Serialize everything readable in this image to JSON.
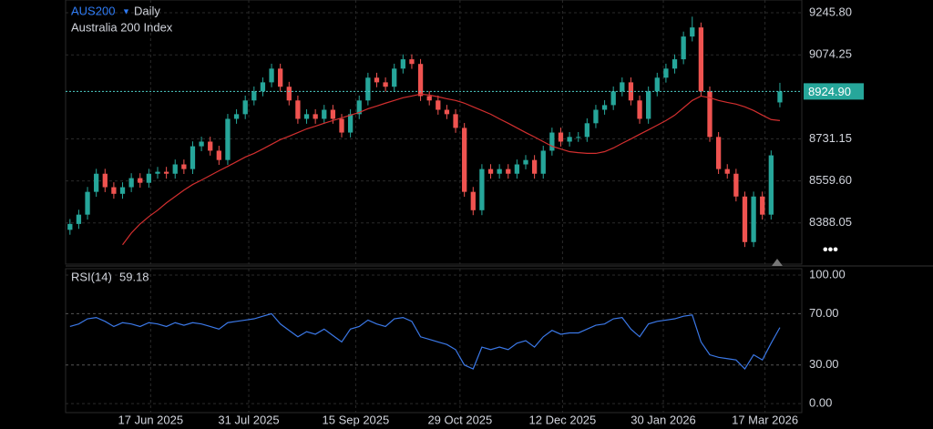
{
  "chart_data": [
    {
      "type": "candlestick",
      "symbol": "AUS200",
      "interval": "Daily",
      "subtitle": "Australia 200 Index",
      "up_color": "#26a69a",
      "down_color": "#ef5350",
      "open": [
        8360,
        8384,
        8422,
        8515,
        8589,
        8534,
        8507,
        8534,
        8571,
        8552,
        8589,
        8597,
        8589,
        8627,
        8608,
        8701,
        8720,
        8683,
        8645,
        8813,
        8832,
        8888,
        8925,
        8962,
        9018,
        8944,
        8888,
        8813,
        8832,
        8813,
        8850,
        8813,
        8757,
        8832,
        8888,
        8981,
        8962,
        8944,
        9018,
        9056,
        9037,
        8906,
        8888,
        8850,
        8832,
        8776,
        8515,
        8440,
        8608,
        8589,
        8608,
        8589,
        8627,
        8645,
        8589,
        8683,
        8757,
        8720,
        8739,
        8739,
        8795,
        8850,
        8869,
        8925,
        8962,
        8888,
        8813,
        8925,
        8981,
        9018,
        9056,
        9149,
        9186,
        8925,
        8739,
        8608,
        8589,
        8496,
        8310,
        8496,
        8422,
        8880
      ],
      "high": [
        8404,
        8442,
        8535,
        8609,
        8609,
        8554,
        8554,
        8591,
        8591,
        8609,
        8617,
        8617,
        8647,
        8647,
        8721,
        8740,
        8740,
        8703,
        8833,
        8852,
        8908,
        8945,
        8982,
        9038,
        9038,
        8964,
        8908,
        8852,
        8852,
        8870,
        8870,
        8833,
        8852,
        8908,
        9001,
        9001,
        8982,
        9038,
        9076,
        9076,
        9057,
        8926,
        8908,
        8870,
        8852,
        8796,
        8535,
        8628,
        8628,
        8628,
        8628,
        8647,
        8665,
        8665,
        8703,
        8777,
        8777,
        8759,
        8759,
        8815,
        8870,
        8889,
        8945,
        8982,
        8982,
        8908,
        8945,
        9001,
        9038,
        9076,
        9169,
        9230,
        9206,
        8945,
        8759,
        8628,
        8609,
        8516,
        8516,
        8516,
        8684,
        8960
      ],
      "low": [
        8340,
        8364,
        8402,
        8495,
        8514,
        8487,
        8487,
        8514,
        8532,
        8532,
        8569,
        8569,
        8569,
        8588,
        8588,
        8681,
        8663,
        8625,
        8625,
        8793,
        8812,
        8868,
        8905,
        8942,
        8924,
        8868,
        8793,
        8793,
        8793,
        8793,
        8793,
        8737,
        8737,
        8812,
        8868,
        8942,
        8924,
        8924,
        8998,
        9017,
        8886,
        8868,
        8830,
        8812,
        8756,
        8495,
        8420,
        8420,
        8569,
        8569,
        8569,
        8569,
        8607,
        8569,
        8569,
        8663,
        8700,
        8700,
        8719,
        8719,
        8775,
        8830,
        8849,
        8905,
        8868,
        8793,
        8793,
        8905,
        8961,
        8998,
        9036,
        9129,
        8905,
        8719,
        8588,
        8569,
        8476,
        8290,
        8290,
        8402,
        8402,
        8860
      ],
      "close": [
        8384,
        8422,
        8515,
        8589,
        8534,
        8507,
        8534,
        8571,
        8552,
        8589,
        8597,
        8589,
        8627,
        8608,
        8701,
        8720,
        8683,
        8645,
        8813,
        8832,
        8888,
        8925,
        8962,
        9018,
        8944,
        8888,
        8813,
        8832,
        8813,
        8850,
        8813,
        8757,
        8832,
        8888,
        8981,
        8962,
        8944,
        9018,
        9056,
        9037,
        8906,
        8888,
        8850,
        8832,
        8776,
        8515,
        8440,
        8608,
        8589,
        8608,
        8589,
        8627,
        8645,
        8589,
        8683,
        8757,
        8720,
        8739,
        8739,
        8795,
        8850,
        8869,
        8925,
        8962,
        8888,
        8813,
        8925,
        8981,
        9018,
        9056,
        9149,
        9186,
        8925,
        8739,
        8608,
        8589,
        8496,
        8310,
        8496,
        8422,
        8664,
        8924.9
      ],
      "moving_average": {
        "color": "#d32f2f",
        "values": [
          null,
          null,
          null,
          null,
          null,
          null,
          8299,
          8347,
          8384,
          8414,
          8440,
          8470,
          8496,
          8522,
          8545,
          8563,
          8582,
          8601,
          8619,
          8638,
          8657,
          8672,
          8690,
          8709,
          8728,
          8742,
          8757,
          8772,
          8783,
          8795,
          8806,
          8817,
          8828,
          8839,
          8854,
          8865,
          8877,
          8888,
          8899,
          8906,
          8914,
          8910,
          8903,
          8895,
          8888,
          8877,
          8862,
          8847,
          8832,
          8813,
          8795,
          8776,
          8757,
          8739,
          8720,
          8701,
          8690,
          8679,
          8675,
          8672,
          8672,
          8679,
          8694,
          8713,
          8731,
          8750,
          8768,
          8787,
          8806,
          8828,
          8858,
          8888,
          8906,
          8899,
          8888,
          8880,
          8873,
          8862,
          8847,
          8828,
          8810,
          8806
        ]
      },
      "last_price": {
        "value": 8924.9,
        "label": "8924.90"
      },
      "last_price_color": "#26a69a",
      "ylim": [
        8220,
        9298
      ],
      "yticks": [
        8388.05,
        {
          "value": 8559.6,
          "label": "8559.60"
        },
        8731.15,
        9074.25,
        {
          "value": 9245.8,
          "label": "9245.80"
        }
      ],
      "xlim": [
        -0.5,
        83.5
      ],
      "xticks": [
        {
          "value": 9.2,
          "label": "17 Jun 2025"
        },
        {
          "value": 20.4,
          "label": "31 Jul 2025"
        },
        {
          "value": 32.6,
          "label": "15 Sep 2025"
        },
        {
          "value": 44.5,
          "label": "29 Oct 2025"
        },
        {
          "value": 56.2,
          "label": "12 Dec 2025"
        },
        {
          "value": 67.7,
          "label": "30 Jan 2026"
        },
        {
          "value": 79.3,
          "label": "17 Mar 2026"
        }
      ],
      "grid": true
    },
    {
      "type": "line",
      "label": "RSI(14)",
      "series": [
        {
          "color": "#3b78e7",
          "values": [
            60,
            62,
            66,
            67,
            64,
            60,
            63,
            62,
            60,
            63,
            62,
            60,
            63,
            61,
            63,
            62,
            60,
            58,
            63,
            64,
            65,
            66,
            68,
            70,
            62,
            57,
            52,
            56,
            54,
            58,
            53,
            48,
            58,
            60,
            65,
            62,
            60,
            66,
            67,
            64,
            52,
            50,
            48,
            46,
            42,
            30,
            27,
            44,
            42,
            44,
            42,
            47,
            49,
            44,
            52,
            57,
            54,
            55,
            55,
            58,
            61,
            62,
            66,
            67,
            58,
            52,
            62,
            64,
            65,
            66,
            68,
            69,
            48,
            38,
            36,
            35,
            34,
            27,
            38,
            34,
            47,
            59.18
          ]
        }
      ],
      "ylim": [
        -7,
        105
      ],
      "yticks": [
        {
          "value": 0,
          "label": "0.00"
        },
        {
          "value": 30,
          "label": "30.00"
        },
        {
          "value": 70,
          "label": "70.00"
        },
        {
          "value": 100,
          "label": "100.00"
        }
      ],
      "grid": true
    }
  ]
}
